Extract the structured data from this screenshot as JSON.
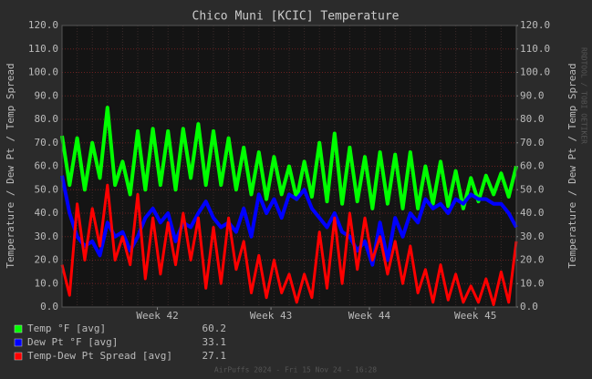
{
  "chart_data": {
    "type": "line",
    "title": "Chico Muni [KCIC] Temperature",
    "ylabel": "Temperature / Dew Pt / Temp Spread",
    "y2label": "Temperature / Dew Pt / Temp Spread",
    "watermark": "RRDTOOL / TOBI OETIKER",
    "footer": "AirPuffs 2024 - Fri 15 Nov 24 - 16:28",
    "x": [
      0,
      0.5,
      1,
      1.5,
      2,
      2.5,
      3,
      3.5,
      4,
      4.5,
      5,
      5.5,
      6,
      6.5,
      7,
      7.5,
      8,
      8.5,
      9,
      9.5,
      10,
      10.5,
      11,
      11.5,
      12,
      12.5,
      13,
      13.5,
      14,
      14.5,
      15,
      15.5,
      16,
      16.5,
      17,
      17.5,
      18,
      18.5,
      19,
      19.5,
      20,
      20.5,
      21,
      21.5,
      22,
      22.5,
      23,
      23.5,
      24,
      24.5,
      25,
      25.5,
      26,
      26.5,
      27,
      27.5,
      28,
      28.5,
      29,
      29.5,
      30
    ],
    "xlim": [
      0,
      30
    ],
    "xticks": [
      {
        "value": 6.3,
        "label": "Week 42"
      },
      {
        "value": 13.8,
        "label": "Week 43"
      },
      {
        "value": 20.3,
        "label": "Week 44"
      },
      {
        "value": 27.3,
        "label": "Week 45"
      }
    ],
    "ylim": [
      0,
      120
    ],
    "yticks": [
      {
        "value": 0,
        "label": "0.0"
      },
      {
        "value": 10,
        "label": "10.0"
      },
      {
        "value": 20,
        "label": "20.0"
      },
      {
        "value": 30,
        "label": "30.0"
      },
      {
        "value": 40,
        "label": "40.0"
      },
      {
        "value": 50,
        "label": "50.0"
      },
      {
        "value": 60,
        "label": "60.0"
      },
      {
        "value": 70,
        "label": "70.0"
      },
      {
        "value": 80,
        "label": "80.0"
      },
      {
        "value": 90,
        "label": "90.0"
      },
      {
        "value": 100,
        "label": "100.0"
      },
      {
        "value": 110,
        "label": "110.0"
      },
      {
        "value": 120,
        "label": "120.0"
      }
    ],
    "y2lim": [
      0,
      120
    ],
    "y2ticks": [
      {
        "value": 0,
        "label": "0.0"
      },
      {
        "value": 10,
        "label": "10.0"
      },
      {
        "value": 20,
        "label": "20.0"
      },
      {
        "value": 30,
        "label": "30.0"
      },
      {
        "value": 40,
        "label": "40.0"
      },
      {
        "value": 50,
        "label": "50.0"
      },
      {
        "value": 60,
        "label": "60.0"
      },
      {
        "value": 70,
        "label": "70.0"
      },
      {
        "value": 80,
        "label": "80.0"
      },
      {
        "value": 90,
        "label": "90.0"
      },
      {
        "value": 100,
        "label": "100.0"
      },
      {
        "value": 110,
        "label": "110.0"
      },
      {
        "value": 120,
        "label": "120.0"
      }
    ],
    "grid": true,
    "series": [
      {
        "name": "Temp °F [avg]",
        "color": "#00ff00",
        "avg": 60.2,
        "values": [
          73,
          52,
          72,
          50,
          70,
          55,
          85,
          52,
          62,
          48,
          75,
          50,
          76,
          52,
          75,
          50,
          76,
          55,
          78,
          52,
          75,
          52,
          72,
          50,
          68,
          48,
          66,
          46,
          64,
          48,
          60,
          46,
          62,
          47,
          70,
          45,
          74,
          44,
          68,
          45,
          64,
          42,
          66,
          44,
          65,
          42,
          66,
          42,
          60,
          44,
          62,
          43,
          58,
          42,
          55,
          45,
          56,
          48,
          57,
          47,
          60
        ]
      },
      {
        "name": "Dew Pt °F [avg]",
        "color": "#0000ff",
        "avg": 33.1,
        "values": [
          56,
          40,
          30,
          26,
          28,
          22,
          36,
          30,
          32,
          24,
          30,
          38,
          42,
          36,
          40,
          28,
          36,
          34,
          40,
          45,
          38,
          34,
          36,
          32,
          42,
          30,
          48,
          40,
          46,
          38,
          48,
          46,
          50,
          42,
          38,
          34,
          40,
          32,
          30,
          24,
          28,
          18,
          36,
          20,
          38,
          30,
          40,
          36,
          46,
          42,
          44,
          40,
          46,
          44,
          48,
          46,
          46,
          44,
          44,
          40,
          34
        ]
      },
      {
        "name": "Temp-Dew Pt Spread [avg]",
        "color": "#ff0000",
        "avg": 27.1,
        "values": [
          18,
          5,
          44,
          20,
          42,
          26,
          52,
          20,
          30,
          18,
          48,
          12,
          38,
          14,
          36,
          18,
          40,
          20,
          38,
          8,
          34,
          10,
          38,
          16,
          28,
          6,
          22,
          4,
          20,
          6,
          14,
          2,
          14,
          4,
          32,
          8,
          38,
          10,
          40,
          16,
          38,
          20,
          30,
          14,
          28,
          10,
          26,
          6,
          16,
          2,
          18,
          3,
          14,
          2,
          9,
          2,
          12,
          1,
          15,
          2,
          28
        ]
      }
    ]
  }
}
